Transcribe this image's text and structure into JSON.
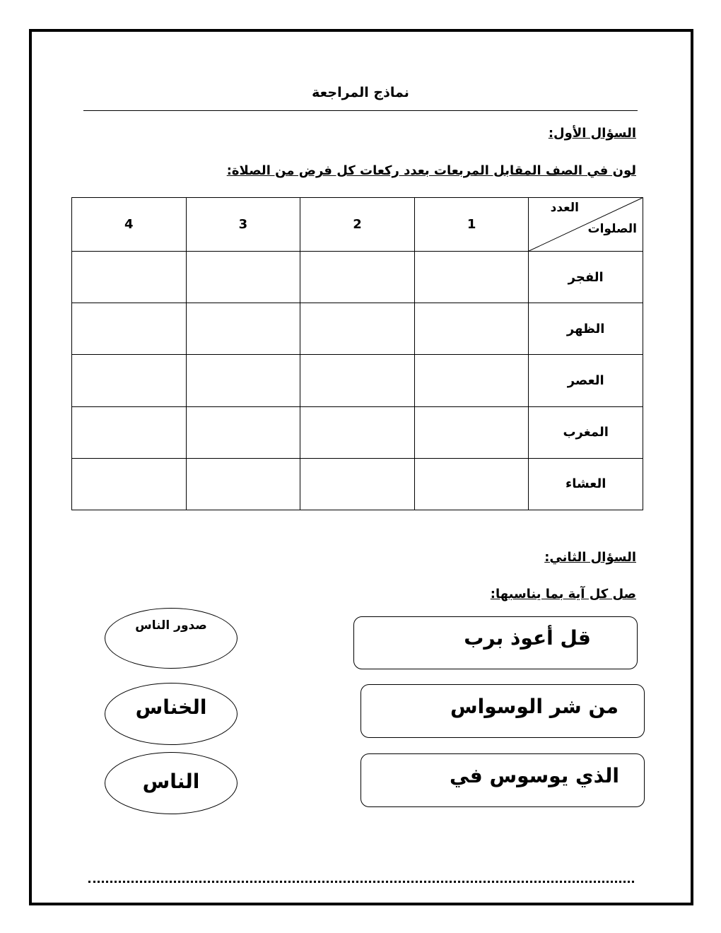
{
  "title": "نماذج المراجعة",
  "question1": {
    "heading": "السؤال الأول:",
    "instruction": "لون في الصف المقابل المربعات بعدد ركعات كل فرض من الصلاة:",
    "table": {
      "corner_top": "العدد",
      "corner_bottom": "الصلوات",
      "columns": [
        "1",
        "2",
        "3",
        "4"
      ],
      "rows": [
        "الفجر",
        "الظهر",
        "العصر",
        "المغرب",
        "العشاء"
      ]
    }
  },
  "question2": {
    "heading": "السؤال الثاني:",
    "instruction": "صل كل آية بما يناسبها:",
    "verses": [
      "قل أعوذ برب",
      "من شر الوسواس",
      "الذي يوسوس في"
    ],
    "endings": [
      "صدور الناس",
      "الخناس",
      "الناس"
    ]
  }
}
